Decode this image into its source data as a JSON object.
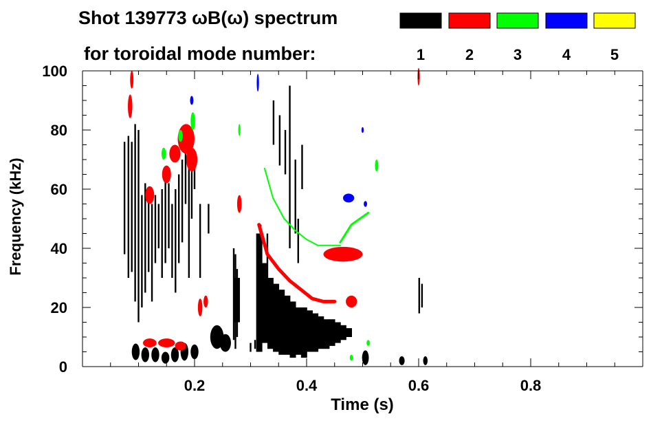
{
  "title_line1": "Shot 139773 ωB(ω) spectrum",
  "title_line2": "for toroidal mode number:",
  "chart_data": {
    "type": "scatter",
    "title": "Shot 139773 ωB(ω) spectrum for toroidal mode number:",
    "xlabel": "Time (s)",
    "ylabel": "Frequency (kHz)",
    "xlim": [
      0.0,
      1.0
    ],
    "ylim": [
      0,
      100
    ],
    "x_ticks": [
      0.2,
      0.4,
      0.6,
      0.8
    ],
    "x_tick_labels": [
      "0.2",
      "0.4",
      "0.6",
      "0.8"
    ],
    "y_ticks": [
      0,
      20,
      40,
      60,
      80,
      100
    ],
    "y_tick_labels": [
      "0",
      "20",
      "40",
      "60",
      "80",
      "100"
    ],
    "legend_placement": "top-right",
    "series": [
      {
        "name": "1",
        "color": "#000000",
        "vbands": [
          [
            0.075,
            38,
            76
          ],
          [
            0.082,
            30,
            78
          ],
          [
            0.088,
            32,
            76
          ],
          [
            0.094,
            22,
            82
          ],
          [
            0.1,
            15,
            80
          ],
          [
            0.106,
            20,
            58
          ],
          [
            0.112,
            25,
            62
          ],
          [
            0.118,
            32,
            60
          ],
          [
            0.124,
            22,
            55
          ],
          [
            0.13,
            35,
            58
          ],
          [
            0.136,
            40,
            55
          ],
          [
            0.142,
            30,
            60
          ],
          [
            0.148,
            35,
            65
          ],
          [
            0.154,
            40,
            62
          ],
          [
            0.16,
            30,
            55
          ],
          [
            0.166,
            25,
            60
          ],
          [
            0.172,
            35,
            65
          ],
          [
            0.178,
            42,
            70
          ],
          [
            0.184,
            55,
            75
          ],
          [
            0.19,
            30,
            75
          ],
          [
            0.195,
            50,
            72
          ],
          [
            0.2,
            60,
            70
          ],
          [
            0.21,
            30,
            55
          ],
          [
            0.225,
            45,
            55
          ],
          [
            0.27,
            9,
            40
          ],
          [
            0.273,
            6,
            38
          ],
          [
            0.276,
            10,
            33
          ],
          [
            0.3,
            5,
            8
          ],
          [
            0.308,
            6,
            9
          ],
          [
            0.318,
            10,
            48
          ],
          [
            0.33,
            20,
            45
          ],
          [
            0.341,
            75,
            90
          ],
          [
            0.352,
            68,
            85
          ],
          [
            0.362,
            65,
            80
          ],
          [
            0.37,
            40,
            95
          ],
          [
            0.38,
            45,
            70
          ],
          [
            0.385,
            35,
            50
          ],
          [
            0.392,
            60,
            75
          ],
          [
            0.601,
            18,
            30
          ],
          [
            0.606,
            20,
            28
          ]
        ],
        "pieces": [
          [
            0.27,
            15,
            30
          ],
          [
            0.31,
            5,
            45
          ],
          [
            0.32,
            8,
            35
          ],
          [
            0.33,
            6,
            30
          ],
          [
            0.34,
            5,
            28
          ],
          [
            0.35,
            4,
            26
          ],
          [
            0.36,
            4,
            24
          ],
          [
            0.37,
            3,
            22
          ],
          [
            0.38,
            4,
            20
          ],
          [
            0.39,
            3,
            20
          ],
          [
            0.4,
            5,
            19
          ],
          [
            0.41,
            5,
            18
          ],
          [
            0.42,
            6,
            17
          ],
          [
            0.43,
            6,
            16
          ],
          [
            0.44,
            7,
            16
          ],
          [
            0.45,
            8,
            15
          ],
          [
            0.46,
            9,
            14
          ],
          [
            0.47,
            10,
            13
          ]
        ],
        "blobs": [
          [
            0.095,
            5,
            0.007,
            2.8
          ],
          [
            0.112,
            4,
            0.007,
            2.5
          ],
          [
            0.13,
            4,
            0.007,
            2.5
          ],
          [
            0.148,
            3,
            0.007,
            2
          ],
          [
            0.165,
            4,
            0.007,
            2.5
          ],
          [
            0.182,
            5,
            0.007,
            3
          ],
          [
            0.2,
            5,
            0.007,
            2.5
          ],
          [
            0.24,
            10,
            0.012,
            4
          ],
          [
            0.255,
            8,
            0.01,
            3
          ],
          [
            0.505,
            3,
            0.006,
            2.5
          ],
          [
            0.57,
            2,
            0.005,
            1.5
          ],
          [
            0.612,
            2,
            0.004,
            1.5
          ]
        ]
      },
      {
        "name": "2",
        "color": "#ff0000",
        "blobs": [
          [
            0.185,
            77,
            0.015,
            5
          ],
          [
            0.195,
            70,
            0.01,
            4
          ],
          [
            0.165,
            72,
            0.01,
            3
          ],
          [
            0.15,
            65,
            0.008,
            3
          ],
          [
            0.12,
            58,
            0.008,
            3
          ],
          [
            0.085,
            88,
            0.004,
            4
          ],
          [
            0.088,
            97,
            0.003,
            3
          ],
          [
            0.465,
            38,
            0.035,
            2.5
          ],
          [
            0.48,
            22,
            0.01,
            2
          ],
          [
            0.28,
            55,
            0.004,
            3
          ],
          [
            0.21,
            20,
            0.004,
            3
          ],
          [
            0.22,
            22,
            0.004,
            2
          ],
          [
            0.12,
            8,
            0.012,
            1.5
          ],
          [
            0.15,
            8,
            0.015,
            1.5
          ],
          [
            0.175,
            7,
            0.01,
            1.5
          ],
          [
            0.6,
            98,
            0.002,
            3
          ]
        ],
        "lines": [
          {
            "points": [
              [
                0.315,
                48
              ],
              [
                0.33,
                38
              ],
              [
                0.35,
                33
              ],
              [
                0.37,
                29
              ],
              [
                0.39,
                26
              ],
              [
                0.41,
                23
              ],
              [
                0.43,
                22
              ],
              [
                0.45,
                22
              ]
            ],
            "width": 5
          }
        ]
      },
      {
        "name": "3",
        "color": "#00ff00",
        "lines": [
          {
            "points": [
              [
                0.325,
                67
              ],
              [
                0.34,
                57
              ],
              [
                0.36,
                50
              ],
              [
                0.38,
                46
              ],
              [
                0.4,
                43
              ],
              [
                0.42,
                41
              ],
              [
                0.44,
                41
              ],
              [
                0.46,
                41
              ]
            ],
            "width": 2
          },
          {
            "points": [
              [
                0.46,
                42
              ],
              [
                0.47,
                45
              ],
              [
                0.48,
                48
              ],
              [
                0.495,
                50
              ],
              [
                0.51,
                52
              ]
            ],
            "width": 3
          }
        ],
        "blobs": [
          [
            0.197,
            83,
            0.004,
            3
          ],
          [
            0.175,
            78,
            0.004,
            2
          ],
          [
            0.145,
            72,
            0.004,
            2
          ],
          [
            0.28,
            80,
            0.002,
            2
          ],
          [
            0.525,
            68,
            0.003,
            2
          ],
          [
            0.48,
            3,
            0.003,
            1
          ],
          [
            0.51,
            8,
            0.003,
            1
          ]
        ]
      },
      {
        "name": "4",
        "color": "#0000ff",
        "blobs": [
          [
            0.313,
            96,
            0.002,
            3
          ],
          [
            0.195,
            90,
            0.003,
            1.5
          ],
          [
            0.475,
            57,
            0.01,
            1.5
          ],
          [
            0.5,
            80,
            0.002,
            1
          ],
          [
            0.505,
            55,
            0.003,
            1
          ]
        ]
      },
      {
        "name": "5",
        "color": "#ffff00",
        "blobs": []
      }
    ]
  }
}
